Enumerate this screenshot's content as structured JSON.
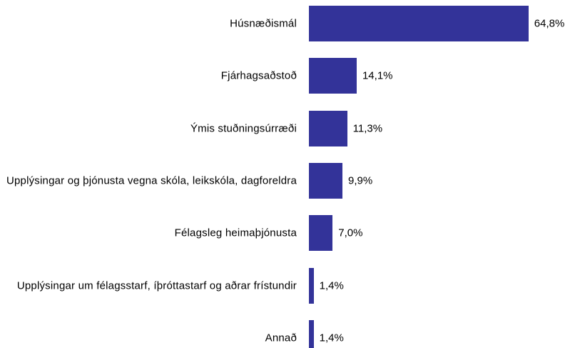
{
  "chart_data": {
    "type": "bar",
    "orientation": "horizontal",
    "categories": [
      "Húsnæðismál",
      "Fjárhagsaðstoð",
      "Ýmis stuðningsúrræði",
      "Upplýsingar og þjónusta vegna skóla, leikskóla, dagforeldra",
      "Félagsleg heimaþjónusta",
      "Upplýsingar um félagsstarf, íþróttastarf og aðrar frístundir",
      "Annað"
    ],
    "values": [
      64.8,
      14.1,
      11.3,
      9.9,
      7.0,
      1.4,
      1.4
    ],
    "value_labels": [
      "64,8%",
      "14,1%",
      "11,3%",
      "9,9%",
      "7,0%",
      "1,4%",
      "1,4%"
    ],
    "color": "#333399"
  }
}
